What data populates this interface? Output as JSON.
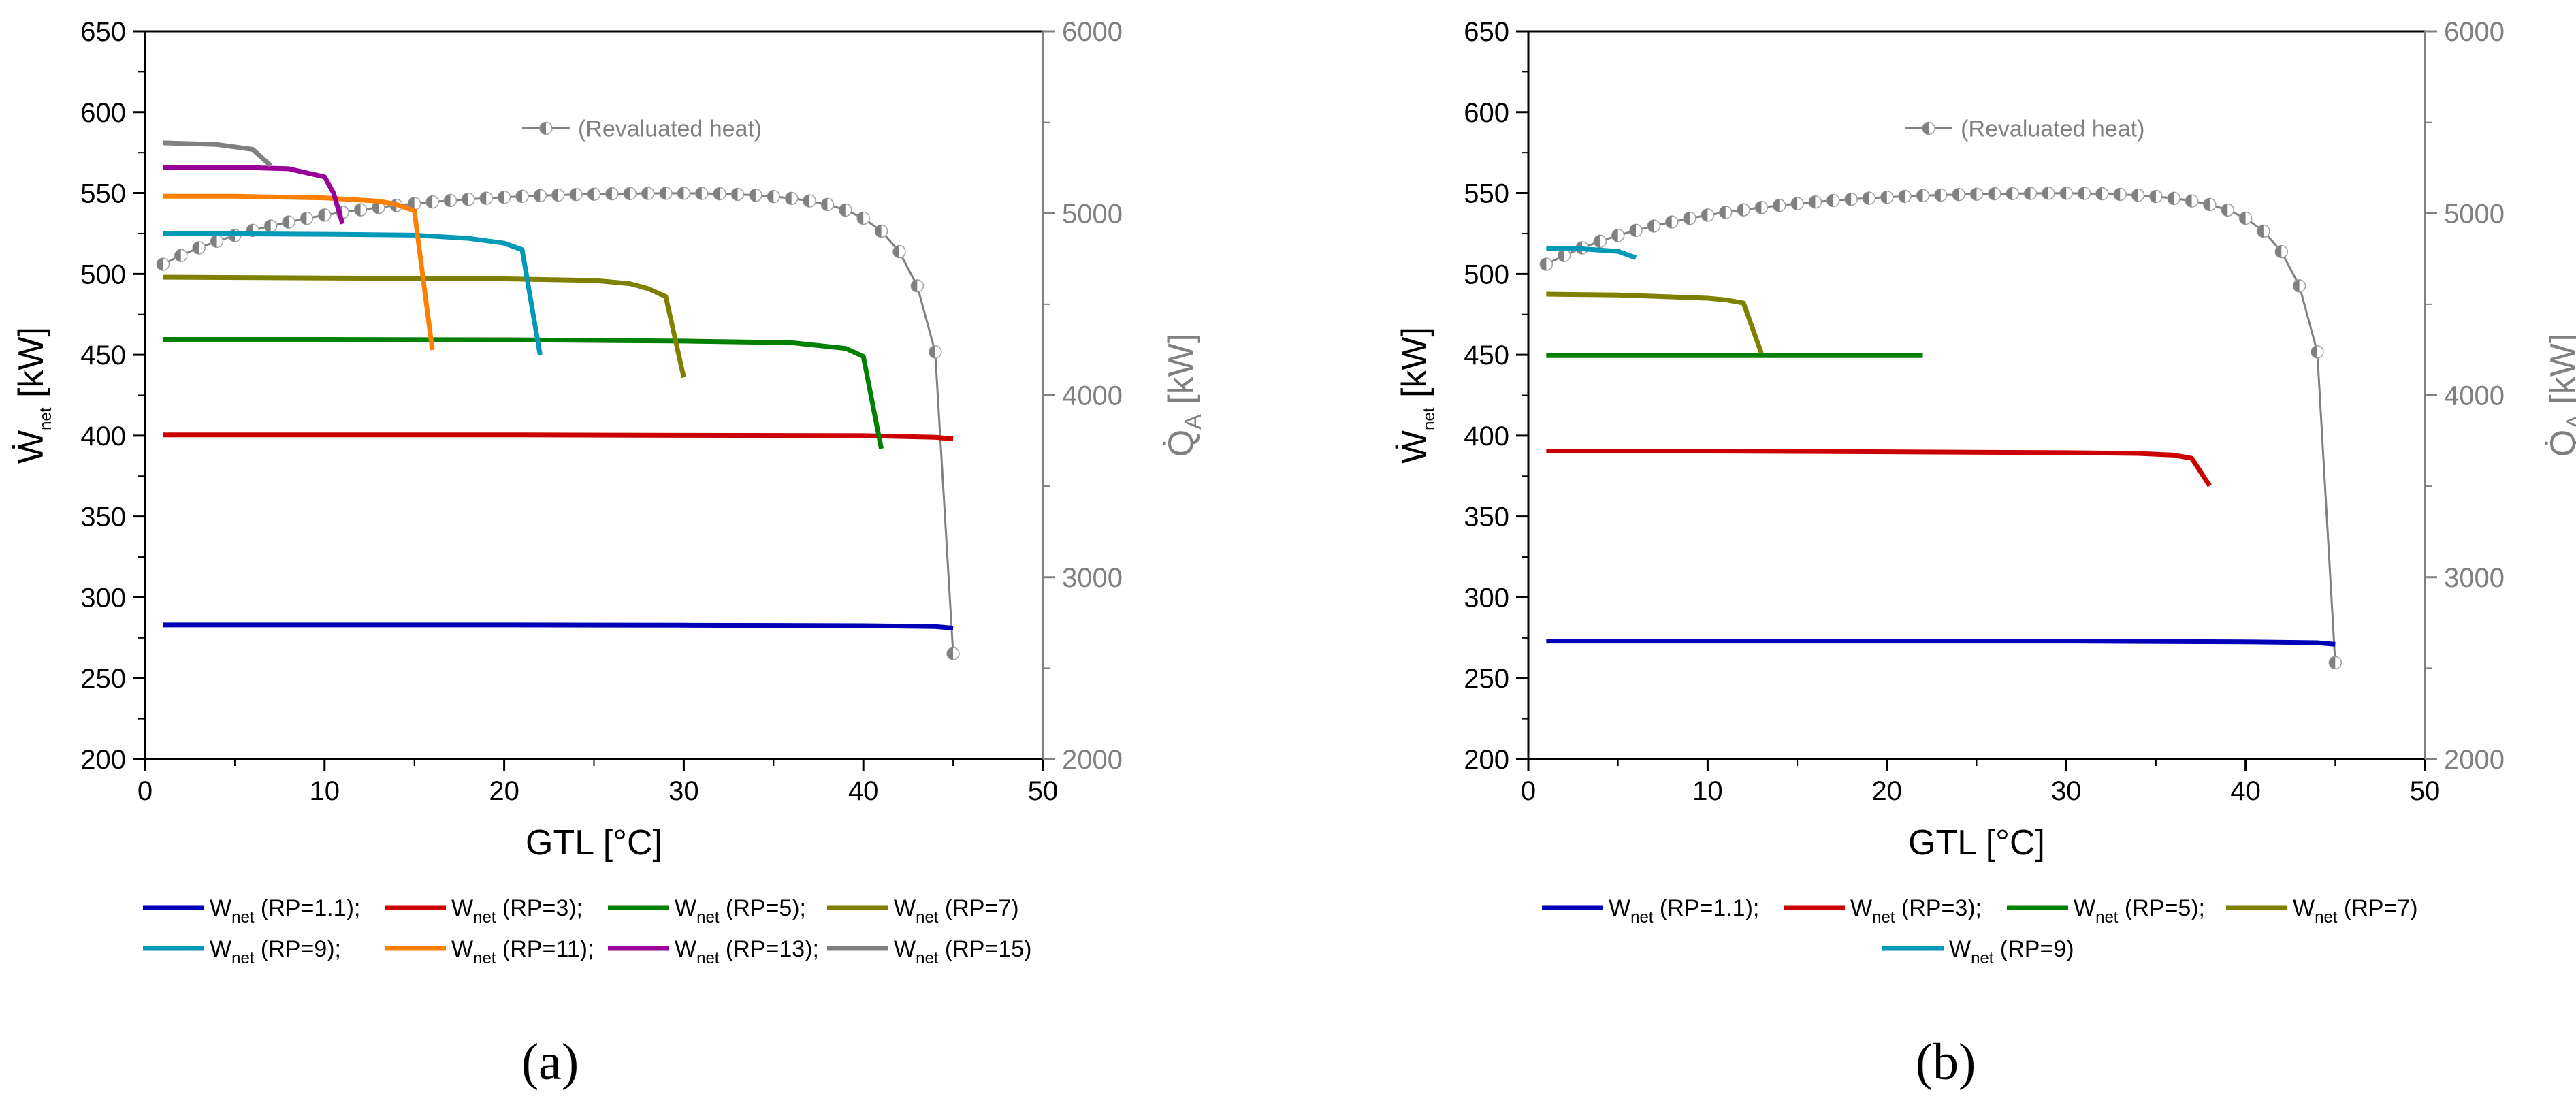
{
  "figure": {
    "panels": [
      "a",
      "b"
    ]
  },
  "colors": {
    "rp1_1": "#0000b8",
    "rp3": "#cc0000",
    "rp5": "#008000",
    "rp7": "#808000",
    "rp9": "#0099b8",
    "rp11": "#ff8000",
    "rp13": "#990099",
    "rp15": "#808080",
    "revaluated": "#808080"
  },
  "chart_data": [
    {
      "panel": "a",
      "panel_label": "(a)",
      "type": "line",
      "xlabel": "GTL [°C]",
      "ylabel": "Ẇnet [kW]",
      "ylabel_main": "Ẇ",
      "ylabel_sub": "net",
      "ylabel_unit": " [kW]",
      "y2label": "Q̇A [kW]",
      "y2label_main": "Q̇",
      "y2label_sub": "A",
      "y2label_unit": " [kW]",
      "xlim": [
        0,
        50
      ],
      "ylim": [
        200,
        650
      ],
      "y2lim": [
        2000,
        6000
      ],
      "xticks": [
        0,
        10,
        20,
        30,
        40,
        50
      ],
      "yticks": [
        200,
        250,
        300,
        350,
        400,
        450,
        500,
        550,
        600,
        650
      ],
      "y2ticks": [
        2000,
        3000,
        4000,
        5000,
        6000
      ],
      "annotation": "(Revaluated heat)",
      "series": [
        {
          "name": "Wnet (RP=1.1);",
          "label_main": "W",
          "label_sub": "net",
          "label_rest": " (RP=1.1);",
          "color_key": "rp1_1",
          "x": [
            1,
            10,
            20,
            30,
            40,
            44,
            45
          ],
          "y": [
            283,
            283,
            283,
            282.8,
            282.5,
            282,
            281
          ]
        },
        {
          "name": "Wnet (RP=3);",
          "label_main": "W",
          "label_sub": "net",
          "label_rest": " (RP=3);",
          "color_key": "rp3",
          "x": [
            1,
            10,
            20,
            30,
            40,
            44,
            45
          ],
          "y": [
            400.5,
            400.5,
            400.5,
            400.2,
            400,
            399,
            398
          ]
        },
        {
          "name": "Wnet (RP=5);",
          "label_main": "W",
          "label_sub": "net",
          "label_rest": " (RP=5);",
          "color_key": "rp5",
          "x": [
            1,
            10,
            20,
            30,
            36,
            39,
            40,
            41
          ],
          "y": [
            459.5,
            459.5,
            459.3,
            458.5,
            457.5,
            454,
            449,
            392
          ]
        },
        {
          "name": "Wnet (RP=7)",
          "label_main": "W",
          "label_sub": "net",
          "label_rest": " (RP=7)",
          "color_key": "rp7",
          "x": [
            1,
            10,
            20,
            25,
            27,
            28,
            29,
            30
          ],
          "y": [
            498,
            497.5,
            497,
            496,
            494,
            491,
            486,
            436
          ]
        },
        {
          "name": "Wnet (RP=9);",
          "label_main": "W",
          "label_sub": "net",
          "label_rest": " (RP=9);",
          "color_key": "rp9",
          "x": [
            1,
            10,
            15,
            18,
            20,
            21,
            22
          ],
          "y": [
            525,
            524.5,
            524,
            522,
            519,
            515,
            450
          ]
        },
        {
          "name": "Wnet (RP=11);",
          "label_main": "W",
          "label_sub": "net",
          "label_rest": " (RP=11);",
          "color_key": "rp11",
          "x": [
            1,
            5,
            10,
            13,
            14,
            15,
            16
          ],
          "y": [
            548,
            548,
            547,
            545,
            543,
            539,
            453
          ]
        },
        {
          "name": "Wnet (RP=13);",
          "label_main": "W",
          "label_sub": "net",
          "label_rest": " (RP=13);",
          "color_key": "rp13",
          "x": [
            1,
            5,
            8,
            10,
            10.5,
            11
          ],
          "y": [
            566,
            566,
            565,
            560,
            550,
            531
          ]
        },
        {
          "name": "Wnet (RP=15)",
          "label_main": "W",
          "label_sub": "net",
          "label_rest": " (RP=15)",
          "color_key": "rp15",
          "x": [
            1,
            4,
            6,
            7
          ],
          "y": [
            581,
            580,
            577,
            567
          ]
        }
      ],
      "revaluated_heat": {
        "name": "(Revaluated heat)",
        "axis": "right",
        "x": [
          1,
          2,
          3,
          4,
          5,
          6,
          7,
          8,
          9,
          10,
          11,
          12,
          13,
          14,
          15,
          16,
          17,
          18,
          19,
          20,
          21,
          22,
          23,
          24,
          25,
          26,
          27,
          28,
          29,
          30,
          31,
          32,
          33,
          34,
          35,
          36,
          37,
          38,
          39,
          40,
          41,
          42,
          43,
          44,
          45
        ],
        "y": [
          4720,
          4768,
          4810,
          4846,
          4878,
          4906,
          4930,
          4952,
          4972,
          4990,
          5005,
          5019,
          5032,
          5043,
          5053,
          5062,
          5070,
          5077,
          5083,
          5088,
          5093,
          5097,
          5100,
          5103,
          5105,
          5107,
          5108,
          5109,
          5110,
          5110,
          5109,
          5107,
          5104,
          5099,
          5092,
          5082,
          5068,
          5048,
          5018,
          4973,
          4902,
          4789,
          4601,
          4238,
          2580
        ]
      }
    },
    {
      "panel": "b",
      "panel_label": "(b)",
      "type": "line",
      "xlabel": "GTL [°C]",
      "ylabel": "Ẇnet [kW]",
      "ylabel_main": "Ẇ",
      "ylabel_sub": "net",
      "ylabel_unit": " [kW]",
      "y2label": "Q̇A [kW]",
      "y2label_main": "Q̇",
      "y2label_sub": "A",
      "y2label_unit": " [kW]",
      "xlim": [
        0,
        50
      ],
      "ylim": [
        200,
        650
      ],
      "y2lim": [
        2000,
        6000
      ],
      "xticks": [
        0,
        10,
        20,
        30,
        40,
        50
      ],
      "yticks": [
        200,
        250,
        300,
        350,
        400,
        450,
        500,
        550,
        600,
        650
      ],
      "y2ticks": [
        2000,
        3000,
        4000,
        5000,
        6000
      ],
      "annotation": "(Revaluated heat)",
      "series": [
        {
          "name": "Wnet (RP=1.1);",
          "label_main": "W",
          "label_sub": "net",
          "label_rest": " (RP=1.1);",
          "color_key": "rp1_1",
          "x": [
            1,
            10,
            20,
            30,
            40,
            44,
            45
          ],
          "y": [
            273,
            273,
            273,
            273,
            272.5,
            272,
            271
          ]
        },
        {
          "name": "Wnet (RP=3);",
          "label_main": "W",
          "label_sub": "net",
          "label_rest": " (RP=3);",
          "color_key": "rp3",
          "x": [
            1,
            10,
            20,
            30,
            34,
            36,
            37,
            38
          ],
          "y": [
            390.5,
            390.5,
            390,
            389.5,
            389,
            388,
            386,
            369
          ]
        },
        {
          "name": "Wnet (RP=5);",
          "label_main": "W",
          "label_sub": "net",
          "label_rest": " (RP=5);",
          "color_key": "rp5",
          "x": [
            1,
            10,
            20,
            22
          ],
          "y": [
            449.5,
            449.5,
            449.5,
            449.5
          ]
        },
        {
          "name": "Wnet (RP=7)",
          "label_main": "W",
          "label_sub": "net",
          "label_rest": " (RP=7)",
          "color_key": "rp7",
          "x": [
            1,
            5,
            10,
            11,
            12,
            13
          ],
          "y": [
            487.5,
            487,
            485,
            484,
            482,
            451
          ]
        },
        {
          "name": "Wnet (RP=9)",
          "label_main": "W",
          "label_sub": "net",
          "label_rest": " (RP=9)",
          "color_key": "rp9",
          "x": [
            1,
            3,
            5,
            6
          ],
          "y": [
            516,
            515.5,
            514,
            510
          ]
        }
      ],
      "revaluated_heat": {
        "name": "(Revaluated heat)",
        "axis": "right",
        "x": [
          1,
          2,
          3,
          4,
          5,
          6,
          7,
          8,
          9,
          10,
          11,
          12,
          13,
          14,
          15,
          16,
          17,
          18,
          19,
          20,
          21,
          22,
          23,
          24,
          25,
          26,
          27,
          28,
          29,
          30,
          31,
          32,
          33,
          34,
          35,
          36,
          37,
          38,
          39,
          40,
          41,
          42,
          43,
          44,
          45
        ],
        "y": [
          4720,
          4768,
          4810,
          4846,
          4878,
          4906,
          4930,
          4952,
          4972,
          4990,
          5005,
          5019,
          5032,
          5043,
          5053,
          5062,
          5070,
          5077,
          5083,
          5088,
          5093,
          5097,
          5100,
          5103,
          5105,
          5107,
          5108,
          5109,
          5110,
          5110,
          5109,
          5107,
          5104,
          5099,
          5092,
          5082,
          5068,
          5048,
          5018,
          4973,
          4902,
          4789,
          4601,
          4238,
          2530
        ]
      }
    }
  ]
}
